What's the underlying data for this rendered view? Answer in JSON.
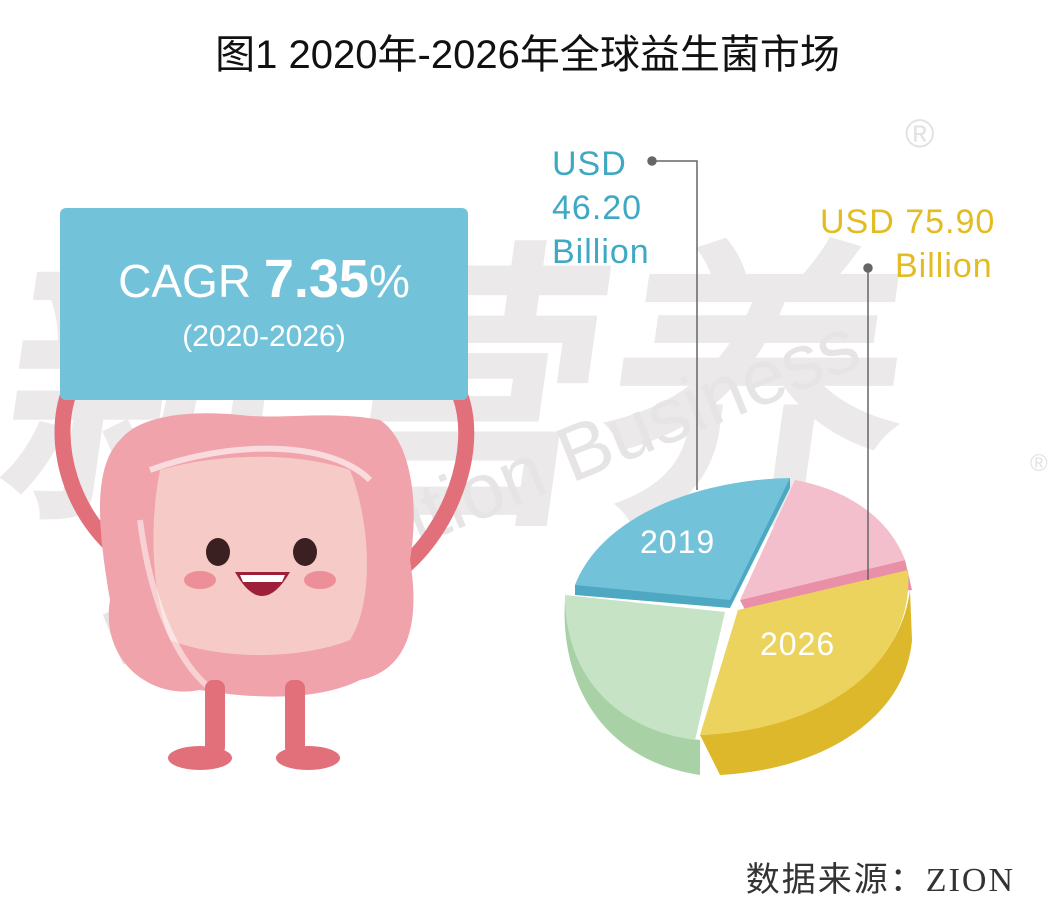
{
  "title": "图1 2020年-2026年全球益生菌市场",
  "watermark": {
    "cn": "新营养",
    "en": "New Nutrition Business",
    "mark": "®"
  },
  "cagr": {
    "prefix": "CAGR",
    "value": "7.35",
    "unit": "%",
    "period": "(2020-2026)"
  },
  "source": "数据来源：ZION",
  "colors": {
    "blue": "#72c3da",
    "yellow": "#ecd35e",
    "green": "#c6e3c6",
    "pink": "#f3bfcd",
    "label_blue": "#3fa9c4",
    "label_yellow": "#e3bc23"
  },
  "chart_data": {
    "type": "pie",
    "title": "",
    "slices": [
      {
        "label": "2019",
        "value": 46.2,
        "annotation": [
          "USD",
          "46.20",
          "Billion"
        ],
        "color": "#72c3da"
      },
      {
        "label": "",
        "value": null,
        "color": "#f3bfcd"
      },
      {
        "label": "2026",
        "value": 75.9,
        "annotation": [
          "USD 75.90",
          "Billion"
        ],
        "color": "#ecd35e"
      },
      {
        "label": "",
        "value": null,
        "color": "#c6e3c6"
      }
    ],
    "unit": "USD Billion"
  }
}
